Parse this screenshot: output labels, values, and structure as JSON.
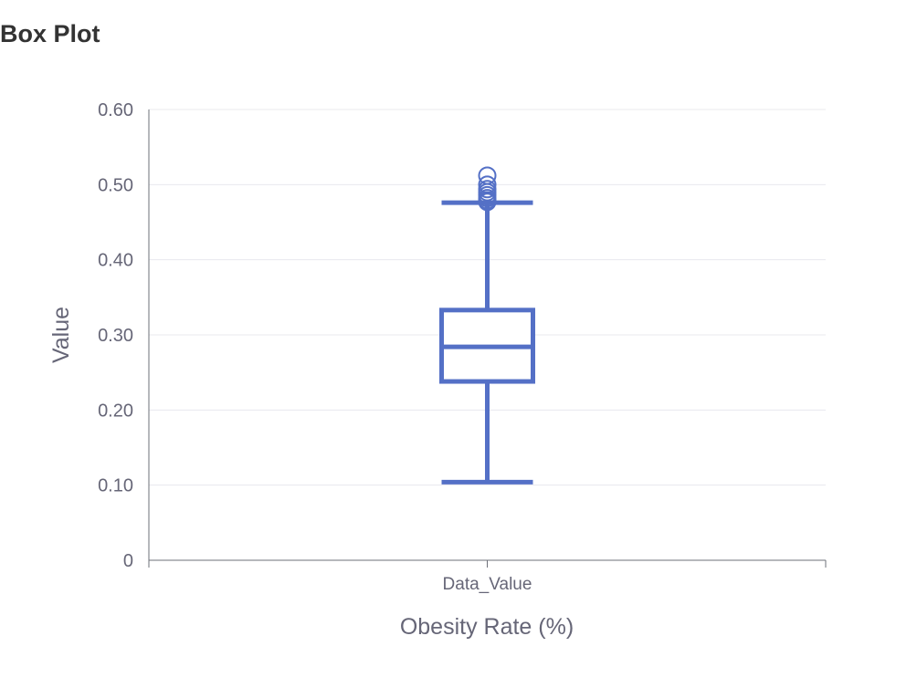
{
  "page_title": "Box Plot",
  "chart_data": {
    "type": "box",
    "title": "",
    "xlabel": "Obesity Rate (%)",
    "ylabel": "Value",
    "categories": [
      "Data_Value"
    ],
    "ylim": [
      0,
      0.6
    ],
    "yticks": [
      0,
      0.1,
      0.2,
      0.3,
      0.4,
      0.5,
      0.6
    ],
    "ytick_labels": [
      "0",
      "0.10",
      "0.20",
      "0.30",
      "0.40",
      "0.50",
      "0.60"
    ],
    "grid": true,
    "color": "#5470c6",
    "boxes": [
      {
        "category": "Data_Value",
        "min": 0.104,
        "q1": 0.238,
        "median": 0.284,
        "q3": 0.333,
        "max": 0.476,
        "outliers": [
          0.512,
          0.5,
          0.494,
          0.49,
          0.486,
          0.482,
          0.479,
          0.477
        ]
      }
    ]
  }
}
